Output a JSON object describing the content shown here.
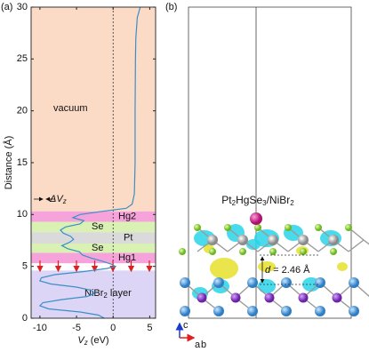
{
  "chart_data": {
    "type": "line",
    "panel_a_label": "(a)",
    "panel_b_label": "(b)",
    "y_label": "Distance (Å)",
    "x_label": {
      "symbol": "V",
      "sub": "z",
      "unit": " (eV)"
    },
    "xlim": [
      -11.2,
      5.8
    ],
    "xticks": [
      -10,
      -5,
      0,
      5
    ],
    "ylim": [
      0,
      30
    ],
    "yticks": [
      0,
      5,
      10,
      15,
      20,
      25,
      30
    ],
    "reference_line_x": 0,
    "line_color": "#3b8fc7",
    "bands": [
      {
        "label": "vacuum",
        "from": 10.3,
        "to": 30,
        "color": "#fbdac6"
      },
      {
        "label": "Hg2",
        "from": 9.3,
        "to": 10.3,
        "color": "#f6a3dc"
      },
      {
        "label": "Se",
        "from": 8.3,
        "to": 9.3,
        "color": "#d9f1b3"
      },
      {
        "label": "Pt",
        "from": 7.2,
        "to": 8.3,
        "color": "#dadada"
      },
      {
        "label": "Se",
        "from": 6.3,
        "to": 7.2,
        "color": "#d9f1b3"
      },
      {
        "label": "Hg1",
        "from": 5.3,
        "to": 6.3,
        "color": "#f6a3dc"
      },
      {
        "label": {
          "main": "NiBr",
          "sub": "2",
          "rest": " layer"
        },
        "from": 0,
        "to": 4.6,
        "color": "#dcd5f6"
      }
    ],
    "delta_label": {
      "main": "ΔV",
      "sub": "z"
    },
    "distance": [
      30,
      29.5,
      29,
      28,
      27,
      25,
      20,
      15,
      12,
      11,
      10.6,
      10.3,
      10.0,
      9.7,
      9.4,
      9.1,
      8.8,
      8.5,
      8.2,
      7.9,
      7.6,
      7.3,
      7.0,
      6.7,
      6.4,
      6.1,
      5.8,
      5.5,
      5.2,
      5.0,
      4.8,
      4.5,
      4.2,
      3.9,
      3.6,
      3.3,
      3.0,
      2.7,
      2.4,
      2.1,
      1.8,
      1.5,
      1.2,
      0.9,
      0.6,
      0.3,
      0
    ],
    "vz": [
      3.7,
      3.5,
      3.3,
      3.2,
      3.1,
      3.05,
      3.0,
      3.0,
      2.9,
      2.6,
      1.8,
      -1.5,
      -4.5,
      -5.5,
      -4.0,
      -4.5,
      -6.5,
      -7.2,
      -6.8,
      -5.8,
      -5.4,
      -6.0,
      -7.0,
      -6.2,
      -4.6,
      -4.2,
      -3.0,
      -1.5,
      -0.2,
      0.3,
      -0.8,
      -4.0,
      -8.0,
      -9.8,
      -10.0,
      -8.5,
      -5.0,
      -3.0,
      -2.6,
      -3.5,
      -7.0,
      -9.6,
      -10.0,
      -8.8,
      -4.5,
      -2.0,
      -1.2
    ],
    "structure_title": [
      "Pt",
      "2",
      "HgSe",
      "3",
      "/NiBr",
      "2"
    ],
    "distance_label": {
      "symbol": "d",
      "text": " = 2.46 Å"
    },
    "axes_labels": [
      "c",
      "a",
      "b"
    ]
  }
}
